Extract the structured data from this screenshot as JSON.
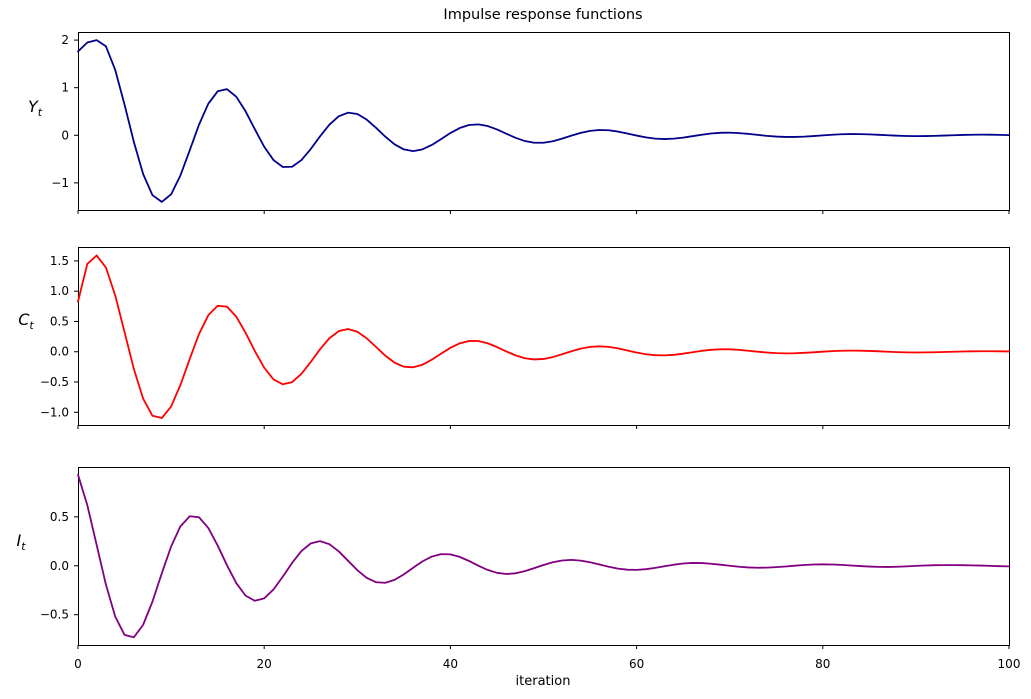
{
  "figure": {
    "title": "Impulse response functions",
    "background": "#ffffff",
    "text_color": "#000000"
  },
  "x_axis": {
    "label": "iteration",
    "lim": [
      0,
      100
    ],
    "ticks": [
      {
        "v": 0,
        "label": "0"
      },
      {
        "v": 20,
        "label": "20"
      },
      {
        "v": 40,
        "label": "40"
      },
      {
        "v": 60,
        "label": "60"
      },
      {
        "v": 80,
        "label": "80"
      },
      {
        "v": 100,
        "label": "100"
      }
    ]
  },
  "chart_data": [
    {
      "type": "line",
      "series_name": "Y_t",
      "ylabel_base": "Y",
      "ylabel_sub": "t",
      "color": "#00008b",
      "grid": false,
      "legend": "none",
      "x_start": 0,
      "x_step": 1,
      "ylim": [
        -1.57,
        2.17
      ],
      "yticks": [
        {
          "v": 2,
          "label": "2"
        },
        {
          "v": 1,
          "label": "1"
        },
        {
          "v": 0,
          "label": "0"
        },
        {
          "v": -1,
          "label": "−1"
        }
      ],
      "values": [
        1.76,
        1.95,
        2.0,
        1.87,
        1.372,
        0.645,
        -0.14,
        -0.817,
        -1.259,
        -1.4,
        -1.241,
        -0.845,
        -0.316,
        0.224,
        0.664,
        0.924,
        0.969,
        0.811,
        0.504,
        0.125,
        -0.241,
        -0.521,
        -0.666,
        -0.661,
        -0.521,
        -0.289,
        -0.022,
        0.223,
        0.398,
        0.475,
        0.447,
        0.331,
        0.159,
        -0.028,
        -0.19,
        -0.297,
        -0.332,
        -0.296,
        -0.204,
        -0.08,
        0.047,
        0.152,
        0.216,
        0.229,
        0.194,
        0.123,
        0.034,
        -0.053,
        -0.121,
        -0.157,
        -0.157,
        -0.125,
        -0.071,
        -0.008,
        0.05,
        0.092,
        0.111,
        0.105,
        0.078,
        0.038,
        -0.006,
        -0.044,
        -0.07,
        -0.079,
        -0.071,
        -0.049,
        -0.019,
        0.012,
        0.037,
        0.052,
        0.055,
        0.046,
        0.029,
        0.008,
        -0.012,
        -0.027,
        -0.035,
        -0.035,
        -0.028,
        -0.016,
        -0.002,
        0.011,
        0.021,
        0.026,
        0.025,
        0.019,
        0.01,
        0.0,
        -0.009,
        -0.015,
        -0.017,
        -0.016,
        -0.012,
        -0.006,
        0.001,
        0.007,
        0.011,
        0.013,
        0.012,
        0.008,
        0.003
      ]
    },
    {
      "type": "line",
      "series_name": "C_t",
      "ylabel_base": "C",
      "ylabel_sub": "t",
      "color": "#ff0000",
      "grid": false,
      "legend": "none",
      "x_start": 0,
      "x_step": 1,
      "ylim": [
        -1.21,
        1.73
      ],
      "yticks": [
        {
          "v": 1.5,
          "label": "1.5"
        },
        {
          "v": 1.0,
          "label": "1.0"
        },
        {
          "v": 0.5,
          "label": "0.5"
        },
        {
          "v": 0.0,
          "label": "0.0"
        },
        {
          "v": -0.5,
          "label": "−0.5"
        },
        {
          "v": -1.0,
          "label": "−1.0"
        }
      ],
      "values": [
        0.83,
        1.45,
        1.59,
        1.391,
        0.929,
        0.324,
        -0.286,
        -0.776,
        -1.058,
        -1.095,
        -0.905,
        -0.55,
        -0.118,
        0.294,
        0.604,
        0.76,
        0.745,
        0.58,
        0.313,
        0.01,
        -0.264,
        -0.457,
        -0.538,
        -0.501,
        -0.365,
        -0.169,
        0.042,
        0.223,
        0.34,
        0.376,
        0.331,
        0.223,
        0.08,
        -0.064,
        -0.18,
        -0.247,
        -0.257,
        -0.214,
        -0.132,
        -0.032,
        0.065,
        0.139,
        0.178,
        0.177,
        0.14,
        0.078,
        0.006,
        -0.06,
        -0.107,
        -0.127,
        -0.119,
        -0.088,
        -0.042,
        0.008,
        0.052,
        0.081,
        0.09,
        0.08,
        0.055,
        0.021,
        -0.013,
        -0.041,
        -0.057,
        -0.06,
        -0.051,
        -0.032,
        -0.008,
        0.015,
        0.032,
        0.041,
        0.04,
        0.031,
        0.017,
        0.001,
        -0.013,
        -0.023,
        -0.027,
        -0.025,
        -0.018,
        -0.009,
        0.001,
        0.01,
        0.016,
        0.018,
        0.017,
        0.013,
        0.007,
        0.0,
        -0.006,
        -0.01,
        -0.012,
        -0.011,
        -0.008,
        -0.004,
        0.0,
        0.004,
        0.007,
        0.008,
        0.008,
        0.007,
        0.005
      ]
    },
    {
      "type": "line",
      "series_name": "I_t",
      "ylabel_base": "I",
      "ylabel_sub": "t",
      "color": "#800080",
      "grid": false,
      "legend": "none",
      "x_start": 0,
      "x_step": 1,
      "ylim": [
        -0.81,
        1.01
      ],
      "yticks": [
        {
          "v": 0.5,
          "label": "0.5"
        },
        {
          "v": 0.0,
          "label": "0.0"
        },
        {
          "v": -0.5,
          "label": "−0.5"
        }
      ],
      "values": [
        0.93,
        0.62,
        0.215,
        -0.193,
        -0.52,
        -0.707,
        -0.731,
        -0.603,
        -0.365,
        -0.077,
        0.197,
        0.403,
        0.506,
        0.496,
        0.386,
        0.208,
        0.006,
        -0.177,
        -0.305,
        -0.358,
        -0.333,
        -0.242,
        -0.111,
        0.03,
        0.151,
        0.229,
        0.252,
        0.221,
        0.148,
        0.052,
        -0.045,
        -0.123,
        -0.168,
        -0.174,
        -0.144,
        -0.088,
        -0.02,
        0.045,
        0.094,
        0.119,
        0.117,
        0.091,
        0.049,
        0.001,
        -0.042,
        -0.072,
        -0.084,
        -0.077,
        -0.055,
        -0.024,
        0.008,
        0.036,
        0.054,
        0.06,
        0.053,
        0.036,
        0.013,
        -0.01,
        -0.029,
        -0.04,
        -0.042,
        -0.035,
        -0.021,
        -0.005,
        0.011,
        0.023,
        0.029,
        0.028,
        0.021,
        0.011,
        0.0,
        -0.01,
        -0.017,
        -0.02,
        -0.019,
        -0.014,
        -0.007,
        0.001,
        0.008,
        0.013,
        0.015,
        0.013,
        0.009,
        0.003,
        -0.003,
        -0.008,
        -0.011,
        -0.012,
        -0.01,
        -0.006,
        -0.001,
        0.003,
        0.006,
        0.007,
        0.007,
        0.006,
        0.004,
        0.002,
        -0.001,
        -0.004,
        -0.006
      ]
    }
  ]
}
